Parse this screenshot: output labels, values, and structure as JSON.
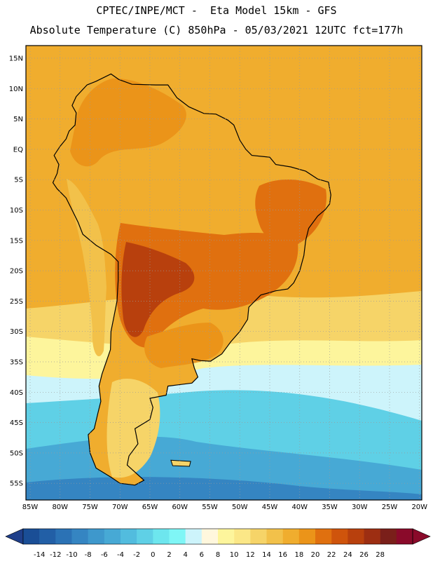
{
  "header": {
    "line1": "CPTEC/INPE/MCT -  Eta Model 15km - GFS",
    "line2": "Absolute Temperature (C) 850hPa - 05/03/2021 12UTC fct=177h"
  },
  "axes": {
    "lat_labels": [
      "15N",
      "10N",
      "5N",
      "EQ",
      "5S",
      "10S",
      "15S",
      "20S",
      "25S",
      "30S",
      "35S",
      "40S",
      "45S",
      "50S",
      "55S"
    ],
    "lon_labels": [
      "85W",
      "80W",
      "75W",
      "70W",
      "65W",
      "60W",
      "55W",
      "50W",
      "45W",
      "40W",
      "35W",
      "30W",
      "25W",
      "20W"
    ]
  },
  "colorbar": {
    "labels": [
      "-14",
      "-12",
      "-10",
      "-8",
      "-6",
      "-4",
      "-2",
      "0",
      "2",
      "4",
      "6",
      "8",
      "10",
      "12",
      "14",
      "16",
      "18",
      "20",
      "22",
      "24",
      "26",
      "28"
    ],
    "colors": [
      "#1a4e96",
      "#225fa6",
      "#2b72b5",
      "#3585c2",
      "#3e98cc",
      "#47a9d5",
      "#52bcde",
      "#5fd0e6",
      "#6de6ee",
      "#7ff6f6",
      "#cdf4fb",
      "#fff7dd",
      "#fdf59c",
      "#fbe787",
      "#f6d468",
      "#f2c14a",
      "#f0ad2e",
      "#eb9419",
      "#e0700f",
      "#cf540c",
      "#b8400d",
      "#9d2e12",
      "#7a1f1a",
      "#8a0a2a"
    ],
    "low_color": "#1f3f8a",
    "high_color": "#8a0a2a"
  },
  "map": {
    "ocean_colors": {
      "tropical": "#f0ad2e",
      "subtropical": "#f6d468",
      "temperate": "#fdf59c",
      "cool": "#cdf4fb",
      "cold": "#5fd0e6",
      "colder": "#47a9d5",
      "coldest": "#3585c2"
    },
    "land_colors": {
      "north": "#eb9419",
      "amazon": "#f0ad2e",
      "warm": "#e0700f",
      "hot": "#b8400d",
      "andes": "#f2c14a",
      "pampa": "#eb9419",
      "patagonia": "#f6d468"
    },
    "coast_color": "#000000",
    "grid_color": "#9a9a9a"
  }
}
